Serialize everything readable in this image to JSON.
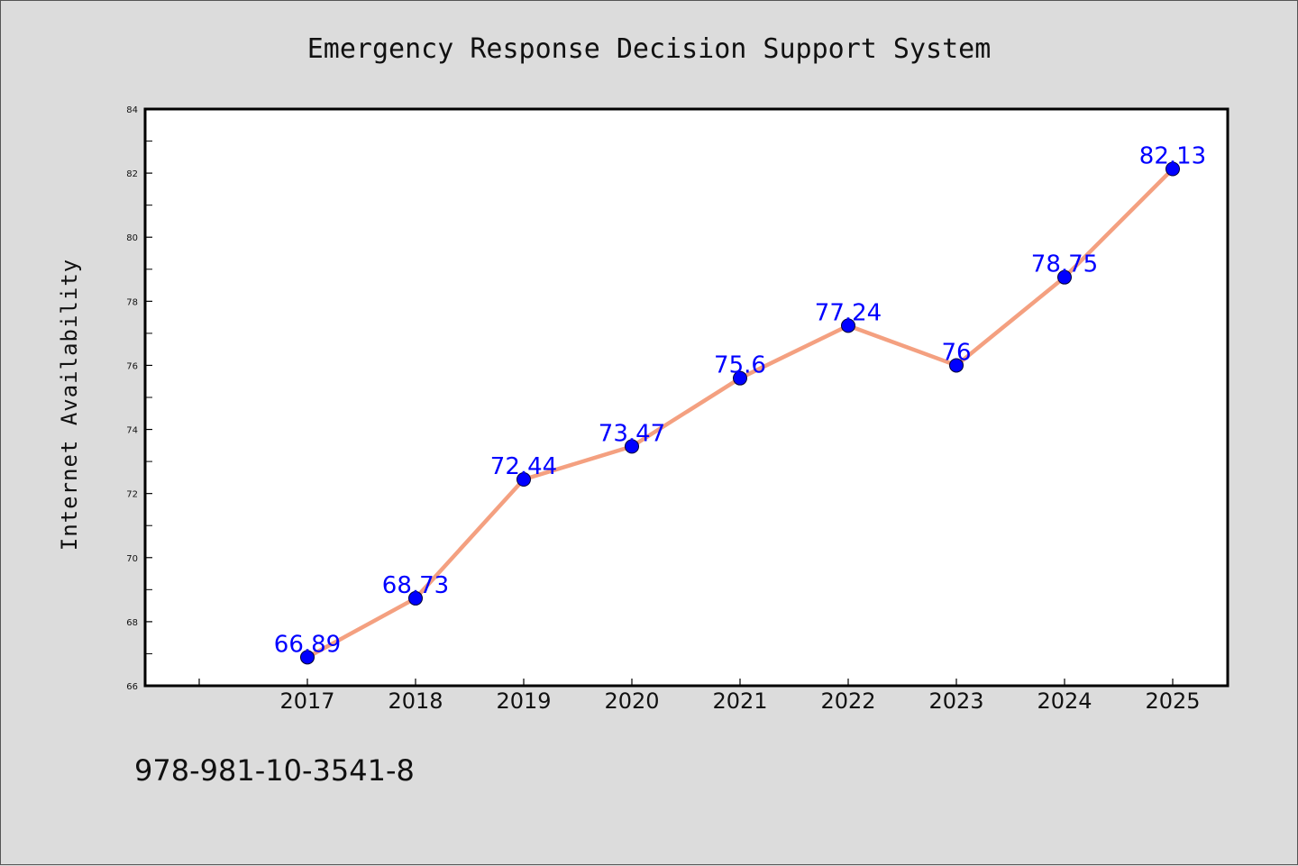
{
  "colors": {
    "background": "#dcdcdc",
    "plot_background": "#ffffff",
    "line": "#f4a080",
    "marker": "#0000ff",
    "data_label": "#0000ff"
  },
  "footer_text": "978-981-10-3541-8",
  "chart_data": {
    "type": "line",
    "title": "Emergency Response Decision Support System",
    "xlabel": "",
    "ylabel": "Internet Availability",
    "categories": [
      "2017",
      "2018",
      "2019",
      "2020",
      "2021",
      "2022",
      "2023",
      "2024",
      "2025"
    ],
    "series": [
      {
        "values": [
          66.89,
          68.73,
          72.44,
          73.47,
          75.6,
          77.24,
          76,
          78.75,
          82.13
        ],
        "labels": [
          "66.89",
          "68.73",
          "72.44",
          "73.47",
          "75.6",
          "77.24",
          "76",
          "78.75",
          "82.13"
        ]
      }
    ],
    "ylim": [
      66,
      84
    ],
    "yticks": [
      66,
      68,
      70,
      72,
      74,
      76,
      78,
      80,
      82,
      84
    ],
    "grid": false,
    "legend": "none"
  }
}
